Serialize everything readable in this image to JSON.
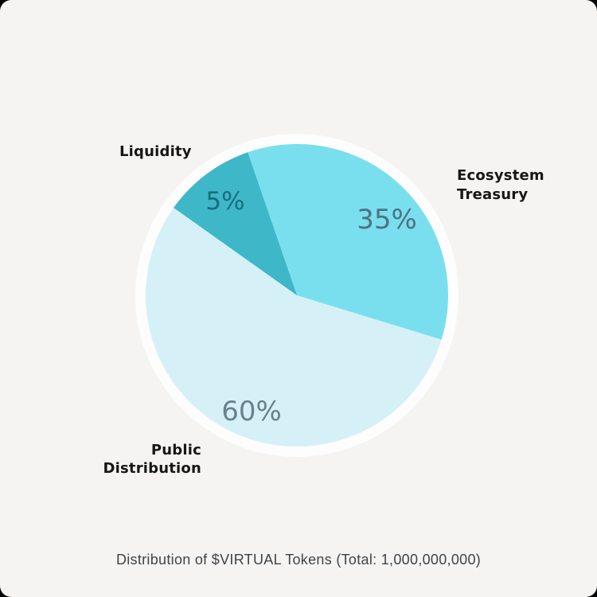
{
  "page": {
    "background_color": "#f5f4f3",
    "corner_color": "#000000",
    "ring_color": "#fdfdfd"
  },
  "chart_data": {
    "type": "pie",
    "title": "Distribution of $VIRTUAL Tokens (Total: 1,000,000,000)",
    "total": "1,000,000,000",
    "categories": [
      "Ecosystem Treasury",
      "Public Distribution",
      "Liquidity"
    ],
    "values": [
      35,
      60,
      5
    ],
    "slices": [
      {
        "label": "Ecosystem Treasury",
        "value": 35,
        "value_label": "35%",
        "color": "#79dfee",
        "value_text_color": "#4e7280"
      },
      {
        "label": "Public Distribution",
        "value": 60,
        "value_label": "60%",
        "color": "#d5f1f7",
        "value_text_color": "#66828c"
      },
      {
        "label": "Liquidity",
        "value": 5,
        "value_label": "5%",
        "color": "#3eb7c9",
        "value_text_color": "#176e7e"
      }
    ],
    "label_text_color": "#161616",
    "title_text_color": "#404448",
    "legend_position": "labels-around-pie",
    "display_geometry": {
      "note": "boundary angles as rendered in source image; conic from top, clockwise",
      "from_deg": -19,
      "cumulative_stop_deg": [
        126,
        324.4,
        360
      ]
    }
  }
}
